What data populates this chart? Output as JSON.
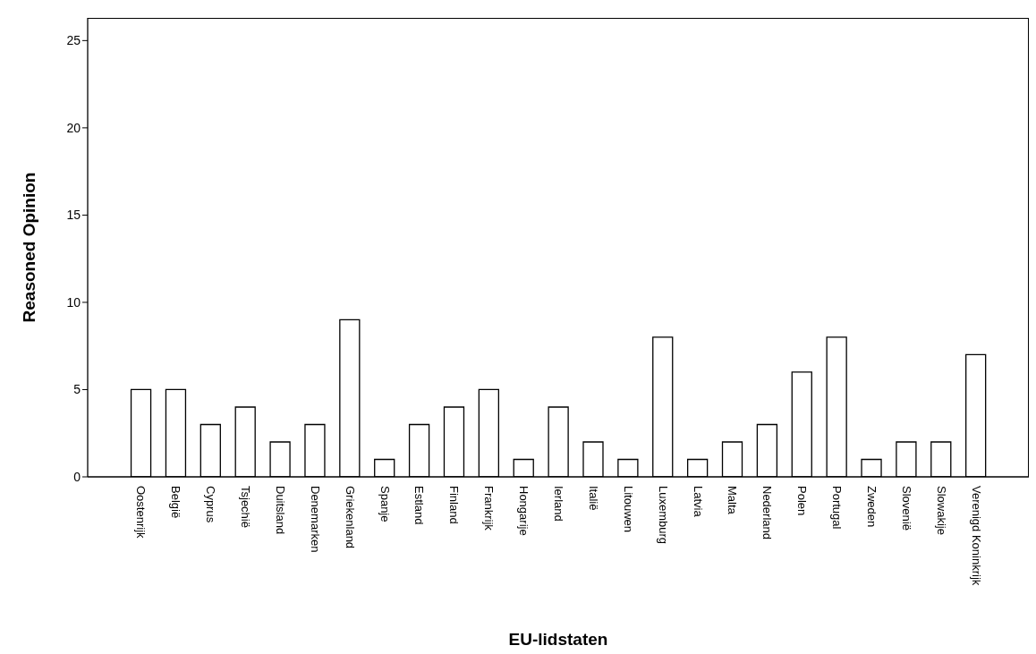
{
  "chart_data": {
    "type": "bar",
    "xlabel": "EU-lidstaten",
    "ylabel": "Reasoned Opinion",
    "categories": [
      "Oostenrijk",
      "België",
      "Cyprus",
      "Tsjechië",
      "Duitsland",
      "Denemarken",
      "Griekenland",
      "Spanje",
      "Estland",
      "Finland",
      "Frankrijk",
      "Hongarije",
      "Ierland",
      "Italië",
      "Litouwen",
      "Luxemburg",
      "Latvia",
      "Malta",
      "Nederland",
      "Polen",
      "Portugal",
      "Zweden",
      "Slovenië",
      "Slowakije",
      "Verenigd Koninkrijk"
    ],
    "values": [
      5,
      5,
      3,
      4,
      2,
      3,
      9,
      1,
      3,
      4,
      5,
      1,
      4,
      2,
      1,
      8,
      1,
      2,
      3,
      6,
      8,
      1,
      2,
      2,
      7
    ],
    "color": "#ffffff",
    "ylim": [
      0,
      26.3
    ],
    "yticks": [
      0,
      5,
      10,
      15,
      20,
      25
    ],
    "grid": false,
    "legend": false
  }
}
